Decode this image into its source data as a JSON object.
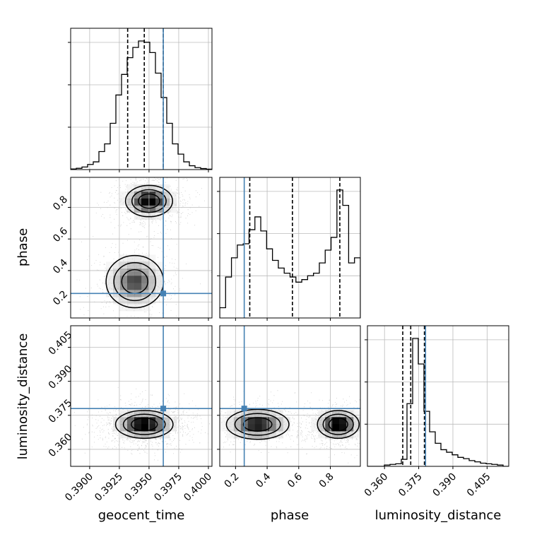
{
  "chart_data": {
    "type": "corner",
    "parameters": [
      "geocent_time",
      "phase",
      "luminosity_distance"
    ],
    "truth_color": "#4682b4",
    "truths": {
      "geocent_time": 0.3962,
      "phase": 0.255,
      "luminosity_distance": 0.378
    },
    "ranges": {
      "geocent_time": [
        0.3884,
        0.4003
      ],
      "phase": [
        0.1,
        0.99
      ],
      "luminosity_distance": [
        0.3525,
        0.4145
      ]
    },
    "ticks": {
      "geocent_time": {
        "values": [
          0.39,
          0.3925,
          0.395,
          0.3975,
          0.4
        ],
        "labels": [
          "0.3900",
          "0.3925",
          "0.3950",
          "0.3975",
          "0.4000"
        ]
      },
      "phase": {
        "values": [
          0.2,
          0.4,
          0.6,
          0.8
        ],
        "labels": [
          "0.2",
          "0.4",
          "0.6",
          "0.8"
        ]
      },
      "luminosity_distance": {
        "values": [
          0.36,
          0.375,
          0.39,
          0.405
        ],
        "labels": [
          "0.360",
          "0.375",
          "0.390",
          "0.405"
        ]
      }
    },
    "quantiles": {
      "geocent_time": [
        0.3932,
        0.3946,
        0.3962
      ],
      "phase": [
        0.29,
        0.56,
        0.86
      ],
      "luminosity_distance": [
        0.368,
        0.3715,
        0.3775
      ]
    },
    "histograms": {
      "geocent_time": {
        "min": 0.3884,
        "max": 0.4003,
        "counts": [
          0.005,
          0.01,
          0.02,
          0.04,
          0.06,
          0.14,
          0.2,
          0.36,
          0.58,
          0.74,
          0.87,
          0.95,
          1.0,
          0.99,
          0.91,
          0.75,
          0.56,
          0.36,
          0.2,
          0.12,
          0.06,
          0.03,
          0.015,
          0.008,
          0.003
        ]
      },
      "phase": {
        "min": 0.1,
        "max": 0.99,
        "counts": [
          0.08,
          0.32,
          0.47,
          0.57,
          0.58,
          0.69,
          0.79,
          0.68,
          0.54,
          0.45,
          0.39,
          0.35,
          0.32,
          0.28,
          0.3,
          0.33,
          0.35,
          0.43,
          0.53,
          0.63,
          1.0,
          0.88,
          0.43,
          0.47
        ]
      },
      "luminosity_distance": {
        "min": 0.3525,
        "max": 0.4145,
        "counts": [
          0.0,
          0.0,
          0.0,
          0.01,
          0.015,
          0.02,
          0.055,
          0.49,
          1.0,
          0.8,
          0.43,
          0.27,
          0.18,
          0.13,
          0.11,
          0.09,
          0.07,
          0.06,
          0.045,
          0.035,
          0.025,
          0.02,
          0.015,
          0.01,
          0.0
        ]
      }
    },
    "density_modes": {
      "geocent_time-phase": [
        {
          "x": 0.395,
          "y": 0.84,
          "sx": 0.0009,
          "sy": 0.045,
          "w": 1.0
        },
        {
          "x": 0.3938,
          "y": 0.33,
          "sx": 0.0011,
          "sy": 0.075,
          "w": 0.65
        }
      ],
      "geocent_time-luminosity_distance": [
        {
          "x": 0.3946,
          "y": 0.371,
          "sx": 0.0011,
          "sy": 0.0028,
          "w": 1.0
        }
      ],
      "phase-luminosity_distance": [
        {
          "x": 0.34,
          "y": 0.371,
          "sx": 0.09,
          "sy": 0.003,
          "w": 0.8
        },
        {
          "x": 0.85,
          "y": 0.371,
          "sx": 0.06,
          "sy": 0.0028,
          "w": 1.0
        }
      ]
    }
  }
}
